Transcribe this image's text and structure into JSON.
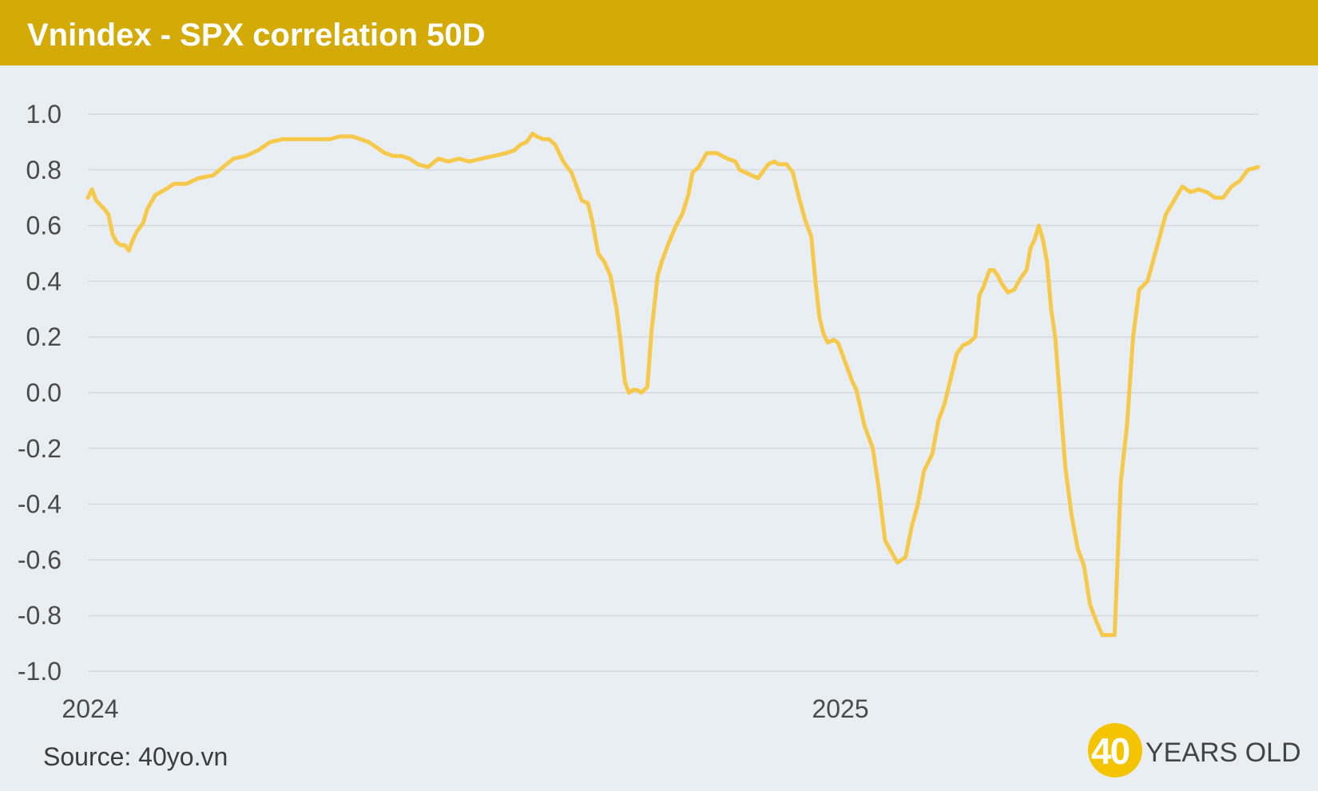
{
  "header": {
    "title": "Vnindex - SPX correlation 50D"
  },
  "footer": {
    "source": "Source: 40yo.vn",
    "logo_number": "40",
    "logo_text": "YEARS OLD"
  },
  "colors": {
    "header_bg": "#d4aa07",
    "line": "#f6c94a",
    "background": "#e9eef3",
    "grid": "#d9dde2"
  },
  "chart_data": {
    "type": "line",
    "title": "Vnindex - SPX correlation 50D",
    "xlabel": "",
    "ylabel": "",
    "x_tick_labels": [
      "2024",
      "2025"
    ],
    "y_tick_labels": [
      "1.0",
      "0.8",
      "0.6",
      "0.4",
      "0.2",
      "0.0",
      "-0.2",
      "-0.4",
      "-0.6",
      "-0.8",
      "-1.0"
    ],
    "ylim": [
      -1.0,
      1.0
    ],
    "xlim": [
      "2024-01-01",
      "2025-07-25"
    ],
    "grid": "horizontal",
    "legend": "none",
    "series": [
      {
        "x": [
          "2024-01-01",
          "2024-01-03",
          "2024-01-05",
          "2024-01-09",
          "2024-01-11",
          "2024-01-13",
          "2024-01-15",
          "2024-01-17",
          "2024-01-19",
          "2024-01-21",
          "2024-01-23",
          "2024-01-25",
          "2024-01-28",
          "2024-01-30",
          "2024-02-03",
          "2024-02-08",
          "2024-02-12",
          "2024-02-18",
          "2024-02-24",
          "2024-03-02",
          "2024-03-07",
          "2024-03-12",
          "2024-03-18",
          "2024-03-24",
          "2024-03-30",
          "2024-04-05",
          "2024-04-10",
          "2024-04-16",
          "2024-04-22",
          "2024-04-28",
          "2024-05-03",
          "2024-05-09",
          "2024-05-13",
          "2024-05-17",
          "2024-05-21",
          "2024-05-25",
          "2024-05-29",
          "2024-06-02",
          "2024-06-06",
          "2024-06-10",
          "2024-06-15",
          "2024-06-20",
          "2024-06-25",
          "2024-06-30",
          "2024-07-05",
          "2024-07-11",
          "2024-07-17",
          "2024-07-23",
          "2024-07-27",
          "2024-07-30",
          "2024-08-02",
          "2024-08-05",
          "2024-08-07",
          "2024-08-10",
          "2024-08-13",
          "2024-08-16",
          "2024-08-20",
          "2024-08-24",
          "2024-08-27",
          "2024-08-29",
          "2024-09-01",
          "2024-09-03",
          "2024-09-06",
          "2024-09-09",
          "2024-09-12",
          "2024-09-15",
          "2024-09-17",
          "2024-09-19",
          "2024-09-21",
          "2024-09-23",
          "2024-09-25",
          "2024-09-27",
          "2024-09-30",
          "2024-10-02",
          "2024-10-05",
          "2024-10-07",
          "2024-10-10",
          "2024-10-14",
          "2024-10-17",
          "2024-10-20",
          "2024-10-22",
          "2024-10-25",
          "2024-10-29",
          "2024-11-03",
          "2024-11-08",
          "2024-11-12",
          "2024-11-14",
          "2024-11-17",
          "2024-11-20",
          "2024-11-23",
          "2024-11-25",
          "2024-11-28",
          "2024-12-01",
          "2024-12-03",
          "2024-12-05",
          "2024-12-07",
          "2024-12-10",
          "2024-12-13",
          "2024-12-16",
          "2024-12-19",
          "2024-12-21",
          "2024-12-23",
          "2024-12-25",
          "2024-12-27",
          "2024-12-30",
          "2025-01-01",
          "2025-01-03",
          "2025-01-06",
          "2025-01-08",
          "2025-01-10",
          "2025-01-14",
          "2025-01-18",
          "2025-01-21",
          "2025-01-24",
          "2025-01-27",
          "2025-01-30",
          "2025-02-03",
          "2025-02-06",
          "2025-02-09",
          "2025-02-12",
          "2025-02-16",
          "2025-02-19",
          "2025-02-22",
          "2025-02-25",
          "2025-02-28",
          "2025-03-03",
          "2025-03-06",
          "2025-03-09",
          "2025-03-11",
          "2025-03-13",
          "2025-03-16",
          "2025-03-18",
          "2025-03-20",
          "2025-03-22",
          "2025-03-25",
          "2025-03-28",
          "2025-03-31",
          "2025-04-03",
          "2025-04-05",
          "2025-04-07",
          "2025-04-09",
          "2025-04-11",
          "2025-04-13",
          "2025-04-15",
          "2025-04-17",
          "2025-04-19",
          "2025-04-22",
          "2025-04-25",
          "2025-04-28",
          "2025-05-01",
          "2025-05-04",
          "2025-05-07",
          "2025-05-10",
          "2025-05-13",
          "2025-05-16",
          "2025-05-19",
          "2025-05-22",
          "2025-05-25",
          "2025-05-28",
          "2025-06-01",
          "2025-06-04",
          "2025-06-07",
          "2025-06-10",
          "2025-06-14",
          "2025-06-18",
          "2025-06-22",
          "2025-06-26",
          "2025-06-30",
          "2025-07-04",
          "2025-07-08",
          "2025-07-12",
          "2025-07-16",
          "2025-07-20",
          "2025-07-25"
        ],
        "values": [
          0.7,
          0.73,
          0.69,
          0.66,
          0.64,
          0.57,
          0.54,
          0.53,
          0.53,
          0.51,
          0.55,
          0.58,
          0.61,
          0.66,
          0.71,
          0.73,
          0.75,
          0.75,
          0.77,
          0.78,
          0.81,
          0.84,
          0.85,
          0.87,
          0.9,
          0.91,
          0.91,
          0.91,
          0.91,
          0.91,
          0.92,
          0.92,
          0.91,
          0.9,
          0.88,
          0.86,
          0.85,
          0.85,
          0.84,
          0.82,
          0.81,
          0.84,
          0.83,
          0.84,
          0.83,
          0.84,
          0.85,
          0.86,
          0.87,
          0.89,
          0.9,
          0.93,
          0.92,
          0.91,
          0.91,
          0.89,
          0.83,
          0.79,
          0.73,
          0.69,
          0.68,
          0.62,
          0.5,
          0.47,
          0.42,
          0.3,
          0.18,
          0.04,
          0.0,
          0.01,
          0.01,
          0.0,
          0.02,
          0.22,
          0.42,
          0.47,
          0.53,
          0.6,
          0.64,
          0.71,
          0.79,
          0.81,
          0.86,
          0.86,
          0.84,
          0.83,
          0.8,
          0.79,
          0.78,
          0.77,
          0.79,
          0.82,
          0.83,
          0.82,
          0.82,
          0.82,
          0.79,
          0.7,
          0.62,
          0.56,
          0.4,
          0.27,
          0.21,
          0.18,
          0.19,
          0.18,
          0.14,
          0.08,
          0.04,
          0.01,
          -0.12,
          -0.2,
          -0.35,
          -0.53,
          -0.57,
          -0.61,
          -0.59,
          -0.48,
          -0.4,
          -0.28,
          -0.22,
          -0.1,
          -0.04,
          0.05,
          0.14,
          0.17,
          0.18,
          0.2,
          0.35,
          0.38,
          0.44,
          0.44,
          0.42,
          0.39,
          0.36,
          0.37,
          0.41,
          0.44,
          0.52,
          0.55,
          0.6,
          0.55,
          0.47,
          0.3,
          0.2,
          0.01,
          -0.27,
          -0.44,
          -0.56,
          -0.62,
          -0.76,
          -0.82,
          -0.87,
          -0.87,
          -0.87,
          -0.32,
          -0.12,
          0.2,
          0.37,
          0.4,
          0.48,
          0.56,
          0.64,
          0.69,
          0.74,
          0.72,
          0.73,
          0.72,
          0.7,
          0.7,
          0.74,
          0.76,
          0.8,
          0.81
        ]
      }
    ]
  }
}
